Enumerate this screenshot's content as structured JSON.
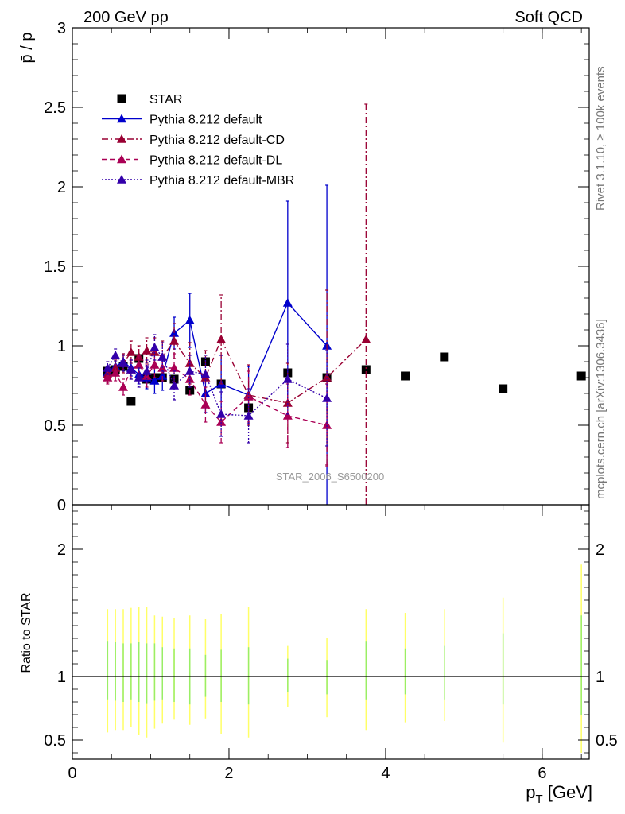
{
  "header": {
    "left": "200 GeV pp",
    "right": "Soft QCD"
  },
  "side_text": {
    "rivet": "Rivet 3.1.10, ≥ 100k events",
    "mcplots": "mcplots.cern.ch [arXiv:1306.3436]"
  },
  "watermark": "STAR_2006_S6500200",
  "chart_data": [
    {
      "type": "scatter",
      "panel": "main",
      "ylabel": "p̄ / p",
      "ylim": [
        0,
        3
      ],
      "xlim": [
        0,
        6.6
      ],
      "yticks": [
        0,
        0.5,
        1,
        1.5,
        2,
        2.5,
        3
      ],
      "ytick_labels": [
        "0",
        "0.5",
        "1",
        "1.5",
        "2",
        "2.5",
        "3"
      ],
      "legend_position": "top-left",
      "series": [
        {
          "name": "STAR",
          "style": "markers",
          "marker": "square",
          "color": "#000000",
          "x": [
            0.45,
            0.55,
            0.65,
            0.75,
            0.85,
            0.95,
            1.05,
            1.15,
            1.3,
            1.5,
            1.7,
            1.9,
            2.25,
            2.75,
            3.25,
            3.75,
            4.25,
            4.75,
            5.5,
            6.5
          ],
          "y": [
            0.84,
            0.85,
            0.87,
            0.65,
            0.92,
            0.79,
            0.8,
            0.8,
            0.79,
            0.72,
            0.9,
            0.76,
            0.61,
            0.83,
            0.8,
            0.85,
            0.81,
            0.93,
            0.73,
            0.81
          ]
        },
        {
          "name": "Pythia 8.212 default",
          "style": "solid",
          "marker": "triangle",
          "color": "#0000cc",
          "x": [
            0.45,
            0.55,
            0.65,
            0.75,
            0.85,
            0.95,
            1.05,
            1.15,
            1.3,
            1.5,
            1.7,
            1.9,
            2.25,
            2.75,
            3.25
          ],
          "y": [
            0.83,
            0.87,
            0.9,
            0.86,
            0.82,
            0.8,
            0.78,
            0.81,
            1.08,
            1.16,
            0.7,
            0.76,
            0.69,
            1.27,
            1.0
          ],
          "err": [
            0.04,
            0.04,
            0.05,
            0.05,
            0.06,
            0.07,
            0.08,
            0.09,
            0.1,
            0.17,
            0.12,
            0.18,
            0.18,
            0.64,
            1.01
          ]
        },
        {
          "name": "Pythia 8.212 default-CD",
          "style": "dashdot",
          "marker": "triangle",
          "color": "#990033",
          "x": [
            0.45,
            0.55,
            0.65,
            0.75,
            0.85,
            0.95,
            1.05,
            1.15,
            1.3,
            1.5,
            1.7,
            1.9,
            2.25,
            2.75,
            3.25,
            3.75
          ],
          "y": [
            0.82,
            0.86,
            0.89,
            0.96,
            0.93,
            0.97,
            0.96,
            0.93,
            1.03,
            0.89,
            0.8,
            1.04,
            0.69,
            0.64,
            0.8,
            1.04
          ],
          "err": [
            0.05,
            0.05,
            0.06,
            0.07,
            0.07,
            0.08,
            0.09,
            0.1,
            0.11,
            0.13,
            0.17,
            0.28,
            0.19,
            0.25,
            0.55,
            1.48
          ]
        },
        {
          "name": "Pythia 8.212 default-DL",
          "style": "dashed",
          "marker": "triangle",
          "color": "#aa0055",
          "x": [
            0.45,
            0.55,
            0.65,
            0.75,
            0.85,
            0.95,
            1.05,
            1.15,
            1.3,
            1.5,
            1.7,
            1.9,
            2.25,
            2.75,
            3.25
          ],
          "y": [
            0.8,
            0.83,
            0.74,
            0.85,
            0.88,
            0.81,
            0.88,
            0.86,
            0.86,
            0.79,
            0.63,
            0.52,
            0.68,
            0.56,
            0.5
          ],
          "err": [
            0.04,
            0.05,
            0.05,
            0.06,
            0.06,
            0.07,
            0.08,
            0.08,
            0.09,
            0.1,
            0.11,
            0.13,
            0.16,
            0.2,
            0.26
          ]
        },
        {
          "name": "Pythia 8.212 default-MBR",
          "style": "dotted",
          "marker": "triangle",
          "color": "#3300aa",
          "x": [
            0.45,
            0.55,
            0.65,
            0.75,
            0.85,
            0.95,
            1.05,
            1.15,
            1.3,
            1.5,
            1.7,
            1.9,
            2.25,
            2.75,
            3.25
          ],
          "y": [
            0.86,
            0.94,
            0.89,
            0.85,
            0.8,
            0.84,
            0.99,
            0.93,
            0.75,
            0.84,
            0.82,
            0.57,
            0.56,
            0.79,
            0.67
          ],
          "err": [
            0.04,
            0.04,
            0.05,
            0.06,
            0.06,
            0.07,
            0.08,
            0.09,
            0.09,
            0.1,
            0.12,
            0.14,
            0.17,
            0.22,
            0.3
          ]
        }
      ]
    },
    {
      "type": "scatter",
      "panel": "ratio",
      "ylabel": "Ratio to STAR",
      "xlabel": "p_T [GeV]",
      "xlabel_main": "p",
      "xlabel_sub": "T",
      "xlabel_unit": " [GeV]",
      "ylim": [
        0.35,
        2.35
      ],
      "xlim": [
        0,
        6.6
      ],
      "xticks": [
        0,
        2,
        4,
        6
      ],
      "xtick_labels": [
        "0",
        "2",
        "4",
        "6"
      ],
      "yticks": [
        0.5,
        1,
        2
      ],
      "ytick_labels": [
        "0.5",
        "1",
        "2"
      ],
      "reference_line": 1,
      "bands": {
        "x": [
          0.45,
          0.55,
          0.65,
          0.75,
          0.85,
          0.95,
          1.05,
          1.15,
          1.3,
          1.5,
          1.7,
          1.9,
          2.25,
          2.75,
          3.25,
          3.75,
          4.25,
          4.75,
          5.5,
          6.5
        ],
        "stat_lo": [
          0.82,
          0.81,
          0.8,
          0.82,
          0.8,
          0.79,
          0.81,
          0.82,
          0.8,
          0.78,
          0.84,
          0.8,
          0.78,
          0.88,
          0.86,
          0.82,
          0.86,
          0.82,
          0.78,
          0.7
        ],
        "stat_hi": [
          1.28,
          1.27,
          1.26,
          1.26,
          1.27,
          1.26,
          1.26,
          1.23,
          1.22,
          1.22,
          1.17,
          1.21,
          1.23,
          1.14,
          1.13,
          1.28,
          1.22,
          1.24,
          1.34,
          1.48
        ],
        "tot_lo": [
          0.56,
          0.58,
          0.58,
          0.6,
          0.54,
          0.52,
          0.59,
          0.63,
          0.66,
          0.62,
          0.67,
          0.55,
          0.52,
          0.76,
          0.68,
          0.58,
          0.64,
          0.65,
          0.48,
          0.4
        ],
        "tot_hi": [
          1.53,
          1.53,
          1.53,
          1.54,
          1.55,
          1.55,
          1.48,
          1.47,
          1.46,
          1.48,
          1.45,
          1.49,
          1.55,
          1.24,
          1.3,
          1.53,
          1.5,
          1.53,
          1.62,
          1.88
        ],
        "stat_color": "#99ee66",
        "tot_color": "#ffff66"
      }
    }
  ]
}
